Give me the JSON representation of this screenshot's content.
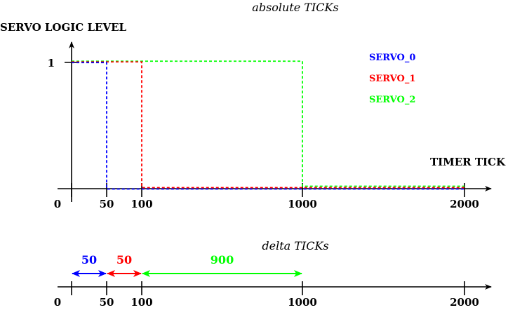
{
  "top_chart": {
    "title": "absolute TICKs",
    "ylabel": "SERVO LOGIC LEVEL",
    "xlabel": "TIMER TICK",
    "y_tick": "1",
    "x_ticks": [
      "0",
      "50",
      "100",
      "1000",
      "2000"
    ],
    "legend": [
      {
        "name": "SERVO_0",
        "color": "#0000ff"
      },
      {
        "name": "SERVO_1",
        "color": "#ff0000"
      },
      {
        "name": "SERVO_2",
        "color": "#00ff00"
      }
    ]
  },
  "bottom_chart": {
    "title": "delta TICKs",
    "x_ticks": [
      "0",
      "50",
      "100",
      "1000",
      "2000"
    ],
    "deltas": [
      {
        "label": "50",
        "from": 0,
        "to": 50,
        "color": "#0000ff"
      },
      {
        "label": "50",
        "from": 50,
        "to": 100,
        "color": "#ff0000"
      },
      {
        "label": "900",
        "from": 100,
        "to": 1000,
        "color": "#00ff00"
      }
    ]
  },
  "chart_data": {
    "type": "line",
    "x": [
      0,
      50,
      100,
      1000,
      2000
    ],
    "series": [
      {
        "name": "SERVO_0",
        "color": "#0000ff",
        "high_until": 50,
        "points": [
          [
            0,
            1
          ],
          [
            50,
            1
          ],
          [
            50,
            0
          ],
          [
            2000,
            0
          ]
        ]
      },
      {
        "name": "SERVO_1",
        "color": "#ff0000",
        "high_until": 100,
        "points": [
          [
            0,
            1
          ],
          [
            100,
            1
          ],
          [
            100,
            0
          ],
          [
            2000,
            0
          ]
        ]
      },
      {
        "name": "SERVO_2",
        "color": "#00ff00",
        "high_until": 1000,
        "points": [
          [
            0,
            1
          ],
          [
            1000,
            1
          ],
          [
            1000,
            0
          ],
          [
            2000,
            0
          ]
        ]
      }
    ],
    "title": "absolute TICKs",
    "xlabel": "TIMER TICK",
    "ylabel": "SERVO LOGIC LEVEL",
    "ylim": [
      0,
      1
    ],
    "grid": false,
    "legend_position": "top-right"
  }
}
